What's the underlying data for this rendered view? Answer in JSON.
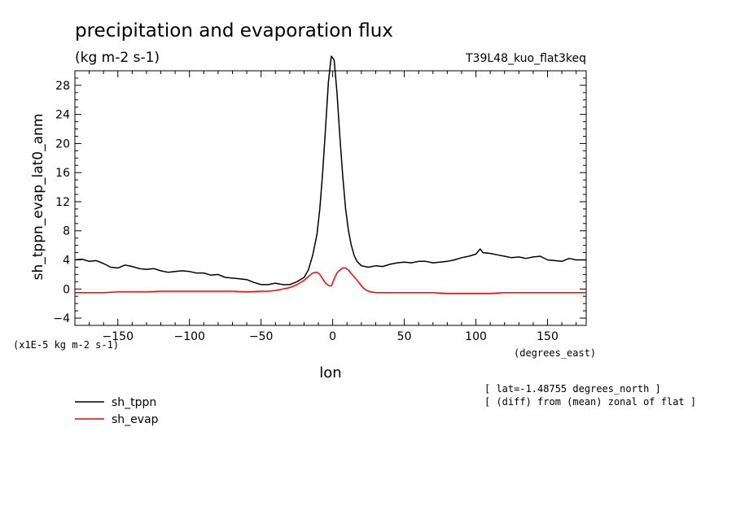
{
  "chart_data": {
    "type": "line",
    "title": "precipitation and evaporation flux",
    "units_label": "(kg m-2 s-1)",
    "run_label": "T39L48_kuo_flat3keq",
    "ylabel": "sh_tppn_evap_lat0_anm",
    "xlabel": "lon",
    "x_units": "(degrees_east)",
    "y_scale_note": "(x1E-5 kg m-2 s-1)",
    "annotations": [
      "[ lat=-1.48755 degrees_north ]",
      "[ (diff) from (mean) zonal of flat ]"
    ],
    "xlim": [
      -180,
      177
    ],
    "ylim": [
      -5,
      30
    ],
    "x_ticks": [
      -150,
      -100,
      -50,
      0,
      50,
      100,
      150
    ],
    "y_ticks": [
      -4,
      0,
      4,
      8,
      12,
      16,
      20,
      24,
      28
    ],
    "legend_position": "bottom-left",
    "grid": false,
    "series": [
      {
        "name": "sh_tppn",
        "color": "#000000",
        "x": [
          -180,
          -175,
          -170,
          -165,
          -160,
          -155,
          -150,
          -145,
          -140,
          -135,
          -130,
          -125,
          -120,
          -115,
          -110,
          -105,
          -100,
          -95,
          -90,
          -85,
          -80,
          -75,
          -70,
          -65,
          -60,
          -55,
          -50,
          -45,
          -40,
          -35,
          -30,
          -25,
          -20,
          -17,
          -14,
          -11,
          -9,
          -7,
          -5,
          -3,
          -1,
          1,
          3,
          5,
          7,
          9,
          11,
          13,
          15,
          17,
          20,
          25,
          30,
          35,
          40,
          45,
          50,
          55,
          60,
          65,
          70,
          75,
          80,
          85,
          90,
          95,
          100,
          103,
          105,
          110,
          115,
          120,
          125,
          130,
          135,
          140,
          145,
          150,
          155,
          160,
          165,
          170,
          177
        ],
        "values": [
          4.0,
          4.1,
          3.8,
          3.9,
          3.5,
          3.0,
          2.9,
          3.3,
          3.1,
          2.8,
          2.7,
          2.8,
          2.5,
          2.3,
          2.4,
          2.5,
          2.4,
          2.2,
          2.2,
          1.9,
          2.0,
          1.6,
          1.5,
          1.4,
          1.3,
          0.9,
          0.6,
          0.6,
          0.8,
          0.6,
          0.6,
          1.0,
          1.6,
          2.6,
          4.6,
          7.5,
          11.0,
          16.0,
          22.0,
          28.5,
          32.0,
          31.5,
          27.0,
          21.0,
          15.5,
          11.0,
          8.0,
          6.0,
          4.6,
          3.8,
          3.2,
          3.0,
          3.2,
          3.1,
          3.4,
          3.6,
          3.7,
          3.6,
          3.8,
          3.8,
          3.6,
          3.7,
          3.8,
          4.0,
          4.3,
          4.5,
          4.8,
          5.5,
          5.0,
          4.9,
          4.7,
          4.5,
          4.3,
          4.4,
          4.2,
          4.4,
          4.5,
          4.0,
          3.9,
          3.8,
          4.2,
          4.0,
          4.0
        ]
      },
      {
        "name": "sh_evap",
        "color": "#ff0000",
        "x": [
          -180,
          -170,
          -160,
          -150,
          -140,
          -130,
          -120,
          -110,
          -100,
          -90,
          -80,
          -70,
          -60,
          -50,
          -45,
          -40,
          -35,
          -30,
          -25,
          -20,
          -17,
          -14,
          -11,
          -9,
          -7,
          -5,
          -3,
          -1,
          1,
          3,
          5,
          7,
          9,
          11,
          13,
          15,
          17,
          19,
          21,
          23,
          25,
          27,
          30,
          40,
          50,
          60,
          70,
          80,
          90,
          100,
          110,
          120,
          130,
          140,
          150,
          160,
          170,
          177
        ],
        "values": [
          -0.5,
          -0.5,
          -0.5,
          -0.4,
          -0.4,
          -0.4,
          -0.3,
          -0.3,
          -0.3,
          -0.3,
          -0.3,
          -0.3,
          -0.4,
          -0.3,
          -0.3,
          -0.2,
          0.0,
          0.2,
          0.6,
          1.2,
          1.7,
          2.2,
          2.3,
          2.0,
          1.4,
          0.8,
          0.5,
          0.4,
          1.4,
          2.2,
          2.6,
          2.9,
          2.9,
          2.6,
          2.1,
          1.7,
          1.2,
          0.7,
          0.2,
          -0.1,
          -0.3,
          -0.4,
          -0.5,
          -0.5,
          -0.5,
          -0.5,
          -0.5,
          -0.6,
          -0.6,
          -0.6,
          -0.6,
          -0.5,
          -0.5,
          -0.5,
          -0.5,
          -0.5,
          -0.5,
          -0.5
        ]
      }
    ]
  }
}
